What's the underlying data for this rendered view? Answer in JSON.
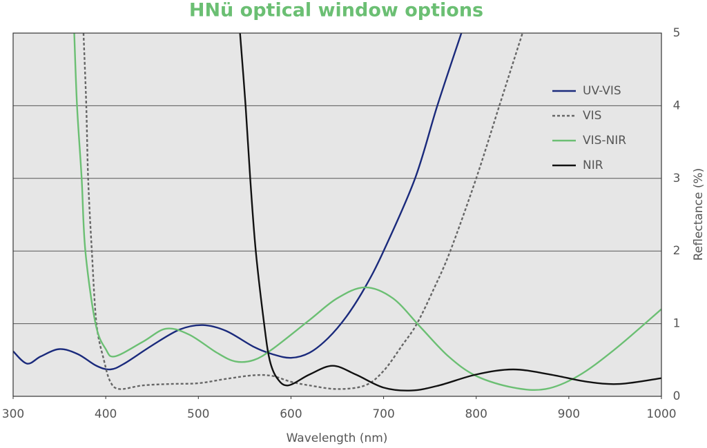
{
  "chart_data": {
    "type": "line",
    "title": "HNü optical window options",
    "x_label": "Wavelength (nm)",
    "y_label": "Reflectance (%)",
    "y_axis_side": "right",
    "xlim": [
      300,
      1000
    ],
    "xticks": [
      300,
      400,
      500,
      600,
      700,
      800,
      900,
      1000
    ],
    "ylim": [
      0,
      5
    ],
    "yticks": [
      0,
      1,
      2,
      3,
      4,
      5
    ],
    "grid": true,
    "legend": "upper right",
    "series": [
      {
        "name": "UV-VIS",
        "color": "#1a2a7c",
        "line_style": "solid",
        "x": [
          300,
          315,
          330,
          350,
          370,
          390,
          405,
          420,
          450,
          480,
          505,
          530,
          560,
          580,
          600,
          620,
          640,
          660,
          680,
          700,
          734,
          758,
          784
        ],
        "values": [
          0.62,
          0.45,
          0.55,
          0.65,
          0.58,
          0.42,
          0.37,
          0.45,
          0.7,
          0.92,
          0.98,
          0.9,
          0.68,
          0.58,
          0.53,
          0.6,
          0.8,
          1.1,
          1.5,
          2.0,
          3.0,
          4.0,
          5.0
        ]
      },
      {
        "name": "VIS",
        "color": "#666666",
        "line_style": "dashed",
        "x": [
          376,
          379,
          381,
          385,
          390,
          398,
          405,
          415,
          440,
          470,
          500,
          530,
          560,
          580,
          600,
          620,
          650,
          680,
          700,
          720,
          736,
          755,
          772,
          800,
          825,
          850
        ],
        "values": [
          5.0,
          4.0,
          3.0,
          2.0,
          1.0,
          0.5,
          0.2,
          0.1,
          0.15,
          0.17,
          0.18,
          0.24,
          0.29,
          0.28,
          0.2,
          0.15,
          0.1,
          0.15,
          0.35,
          0.7,
          1.0,
          1.5,
          2.0,
          3.0,
          4.0,
          5.0
        ]
      },
      {
        "name": "VIS-NIR",
        "color": "#6bbf73",
        "line_style": "solid",
        "x": [
          366,
          369,
          374,
          378,
          389,
          400,
          410,
          440,
          465,
          490,
          520,
          540,
          560,
          580,
          620,
          650,
          680,
          710,
          740,
          770,
          800,
          840,
          875,
          910,
          950,
          1000
        ],
        "values": [
          5.0,
          4.0,
          3.0,
          2.0,
          1.0,
          0.65,
          0.55,
          0.75,
          0.93,
          0.85,
          0.6,
          0.48,
          0.5,
          0.65,
          1.05,
          1.35,
          1.5,
          1.35,
          0.95,
          0.55,
          0.28,
          0.12,
          0.1,
          0.28,
          0.65,
          1.2
        ]
      },
      {
        "name": "NIR",
        "color": "#111111",
        "line_style": "solid",
        "x": [
          545,
          551,
          556,
          562,
          571,
          577,
          585,
          597,
          620,
          645,
          670,
          700,
          730,
          760,
          800,
          840,
          880,
          920,
          955,
          1000
        ],
        "values": [
          5.0,
          4.0,
          3.0,
          2.0,
          1.0,
          0.5,
          0.25,
          0.15,
          0.3,
          0.42,
          0.3,
          0.12,
          0.08,
          0.15,
          0.3,
          0.37,
          0.3,
          0.2,
          0.17,
          0.25
        ]
      }
    ]
  }
}
